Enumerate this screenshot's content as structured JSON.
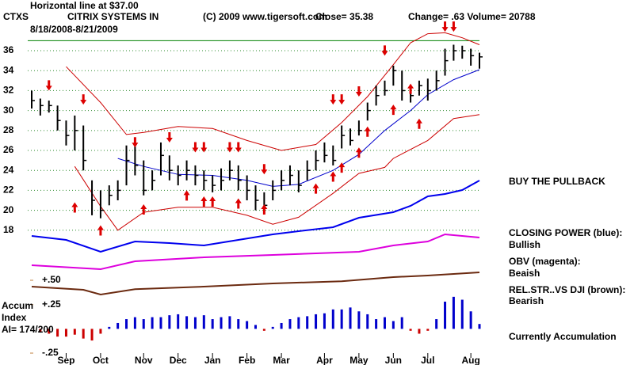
{
  "chart_data": {
    "type": "stock",
    "ticker": "CTXS",
    "company": "CITRIX SYSTEMS IN",
    "copyright": "(C) 2009 www.tigersoft.com",
    "close_text": "Close= 35.38",
    "change_text": "Change= .63 Volume= 20788",
    "date_range": "8/18/2008-8/21/2009",
    "hline": {
      "value": 37,
      "label": "Horizontal line at $37.00",
      "color": "#008000"
    },
    "xlim": [
      0,
      52
    ],
    "xticks": [
      {
        "value": 4,
        "label": "Sep"
      },
      {
        "value": 8,
        "label": "Oct"
      },
      {
        "value": 13,
        "label": "Nov"
      },
      {
        "value": 17,
        "label": "Dec"
      },
      {
        "value": 21,
        "label": "Jan"
      },
      {
        "value": 25,
        "label": "Feb"
      },
      {
        "value": 29,
        "label": "Mar"
      },
      {
        "value": 34,
        "label": "Apr"
      },
      {
        "value": 38,
        "label": "May"
      },
      {
        "value": 42,
        "label": "Jun"
      },
      {
        "value": 46,
        "label": "Jul"
      },
      {
        "value": 51,
        "label": "Aug"
      }
    ],
    "price": {
      "ylim": [
        17,
        38.4
      ],
      "yticks": [
        36,
        34,
        32,
        30,
        28,
        26,
        24,
        22,
        20,
        18
      ],
      "grid": true,
      "grid_color": "#2e8b2e",
      "x": [
        0,
        1,
        2,
        3,
        4,
        5,
        6,
        7,
        8,
        9,
        10,
        11,
        12,
        13,
        14,
        15,
        16,
        17,
        18,
        19,
        20,
        21,
        22,
        23,
        24,
        25,
        26,
        27,
        28,
        29,
        30,
        31,
        32,
        33,
        34,
        35,
        36,
        37,
        38,
        39,
        40,
        41,
        42,
        43,
        44,
        45,
        46,
        47,
        48,
        49,
        50,
        51,
        52
      ],
      "high": [
        32,
        31.2,
        31,
        30.5,
        29,
        29.5,
        28.5,
        23,
        22,
        22.5,
        23,
        26.5,
        26.8,
        25,
        24,
        26.8,
        25.5,
        24.5,
        25,
        24.5,
        24,
        23.5,
        24.2,
        25,
        24.5,
        23.5,
        22.5,
        21.8,
        23,
        24,
        24.5,
        24,
        25,
        26,
        26.8,
        26.5,
        28.5,
        28.2,
        29,
        30.8,
        32.5,
        33,
        34.5,
        34,
        32.5,
        33,
        33.2,
        34,
        36.2,
        36.6,
        36.5,
        36.2,
        35.8
      ],
      "low": [
        30.2,
        29.5,
        29.8,
        28,
        26.5,
        26,
        24,
        19.5,
        19.2,
        20.5,
        21,
        22.5,
        23.5,
        21.5,
        22,
        23.5,
        23,
        22.5,
        23,
        22.5,
        22,
        21.8,
        22,
        23,
        22,
        21,
        20,
        19.8,
        21,
        22,
        22.5,
        21.8,
        23,
        24,
        24.8,
        24.5,
        26.2,
        26.5,
        27.5,
        29,
        30.5,
        31.5,
        32.5,
        31,
        30.8,
        31.5,
        31,
        32,
        33.5,
        35,
        35.2,
        34.5,
        34.2
      ],
      "close": [
        31,
        30.5,
        30.5,
        29,
        27.5,
        28,
        25,
        21,
        20,
        21.5,
        22,
        25,
        24.5,
        22,
        23,
        25.5,
        24,
        23.5,
        24,
        23.5,
        23,
        22.5,
        23,
        24,
        23,
        22,
        21,
        20.5,
        22,
        23,
        23.5,
        22.5,
        24,
        25,
        25.5,
        25,
        27.5,
        27,
        28,
        30,
        31.5,
        32,
        34,
        32,
        31.5,
        32.5,
        32,
        33,
        35,
        36,
        36,
        35.5,
        35.38
      ],
      "color": "#000000"
    },
    "upper_band": {
      "color": "#cc0000",
      "x": [
        4,
        8,
        11,
        13,
        17,
        21,
        25,
        29,
        33,
        36,
        39,
        42,
        44,
        46,
        48,
        50,
        52
      ],
      "values": [
        34.4,
        30.8,
        27.6,
        27.8,
        28.4,
        28.2,
        27,
        26,
        26.6,
        28.8,
        31.4,
        34.6,
        36.8,
        37.7,
        37.8,
        37.3,
        36.6
      ]
    },
    "lower_band": {
      "color": "#cc0000",
      "x": [
        5,
        8,
        10,
        13,
        17,
        21,
        25,
        28,
        31,
        35,
        38,
        41,
        42,
        46,
        49,
        52
      ],
      "values": [
        24.4,
        20.4,
        18,
        19.8,
        20.3,
        20.3,
        19.5,
        18.6,
        19.3,
        21.7,
        23.7,
        24.3,
        25.2,
        27,
        29.2,
        29.6
      ]
    },
    "moving_average": {
      "color": "#0000cc",
      "x": [
        10,
        13,
        17,
        21,
        25,
        28,
        31,
        35,
        38,
        41,
        44,
        46,
        49,
        52
      ],
      "values": [
        25.2,
        24.4,
        23.6,
        23.5,
        23,
        22.4,
        22.6,
        24,
        25.6,
        28,
        30,
        31.6,
        33.1,
        34.1
      ]
    },
    "sell_signals": {
      "color": "#dd0000",
      "x": [
        2,
        6,
        12,
        16,
        19,
        20,
        23,
        24,
        27,
        35,
        36,
        38,
        41,
        48,
        49
      ],
      "values": [
        32,
        30.6,
        26.3,
        26.8,
        25.8,
        25.8,
        25.8,
        25.8,
        23.6,
        30.6,
        30.6,
        31.4,
        35.5,
        37.9,
        37.9
      ]
    },
    "buy_signals": {
      "color": "#dd0000",
      "x": [
        5,
        8,
        13,
        18,
        20,
        21,
        24,
        27,
        33,
        35,
        36,
        38,
        39,
        42,
        44,
        45
      ],
      "values": [
        20.8,
        18.5,
        20.6,
        22,
        21.4,
        21.4,
        21.2,
        20.6,
        22.7,
        23.9,
        24.8,
        26.3,
        28.4,
        30.6,
        32.7,
        29.2
      ]
    },
    "closing_power": {
      "color": "#0000ee",
      "ylim": [
        0,
        100
      ],
      "x": [
        0,
        4,
        8,
        12,
        16,
        20,
        24,
        28,
        31,
        35,
        38,
        42,
        44,
        46,
        48,
        50,
        52
      ],
      "values": [
        27,
        22,
        7,
        20,
        18,
        15,
        22,
        29,
        33,
        38,
        50,
        57,
        65,
        77,
        80,
        85,
        97
      ]
    },
    "obv": {
      "color": "#dd00dd",
      "ylim": [
        0,
        100
      ],
      "x": [
        0,
        8,
        12,
        20,
        28,
        33,
        38,
        42,
        46,
        48,
        52
      ],
      "values": [
        20,
        10,
        30,
        40,
        46,
        50,
        54,
        70,
        80,
        98,
        90
      ]
    },
    "rel_strength": {
      "color": "#6b2a10",
      "ylim": [
        0,
        100
      ],
      "x": [
        0,
        6,
        8,
        12,
        20,
        28,
        36,
        42,
        46,
        52
      ],
      "values": [
        45,
        35,
        20,
        37,
        45,
        55,
        62,
        75,
        80,
        90
      ]
    },
    "accum": {
      "ylim": [
        -0.25,
        0.5
      ],
      "yticks": [
        {
          "value": 0.5,
          "label": "+.50"
        },
        {
          "value": 0.25,
          "label": "+.25"
        },
        {
          "value": -0.25,
          "label": "-.25"
        }
      ],
      "pos_color": "#0000cc",
      "neg_color": "#cc0000",
      "values": [
        0,
        -0.03,
        -0.05,
        -0.08,
        -0.08,
        -0.06,
        -0.1,
        -0.12,
        -0.05,
        0.02,
        0.06,
        0.1,
        0.12,
        0.1,
        0.12,
        0.12,
        0.14,
        0.15,
        0.13,
        0.12,
        0.14,
        0.1,
        0.12,
        0.13,
        0.1,
        0.08,
        0.04,
        -0.02,
        0.02,
        0.06,
        0.1,
        0.12,
        0.13,
        0.15,
        0.16,
        0.2,
        0.2,
        0.22,
        0.18,
        0.15,
        0.1,
        0.12,
        0.08,
        0.12,
        -0.02,
        -0.05,
        -0.02,
        0.1,
        0.28,
        0.33,
        0.3,
        0.18,
        0.05
      ]
    },
    "accum_labels": [
      "Accum",
      "Index",
      "AI= 174/200"
    ],
    "annotations": [
      "BUY THE PULLBACK",
      "CLOSING POWER (blue):",
      "Bullish",
      "OBV (magenta):",
      "Beaish",
      "REL.STR..VS DJI (brown):",
      "Bearish",
      "Currently Accumulation"
    ]
  }
}
